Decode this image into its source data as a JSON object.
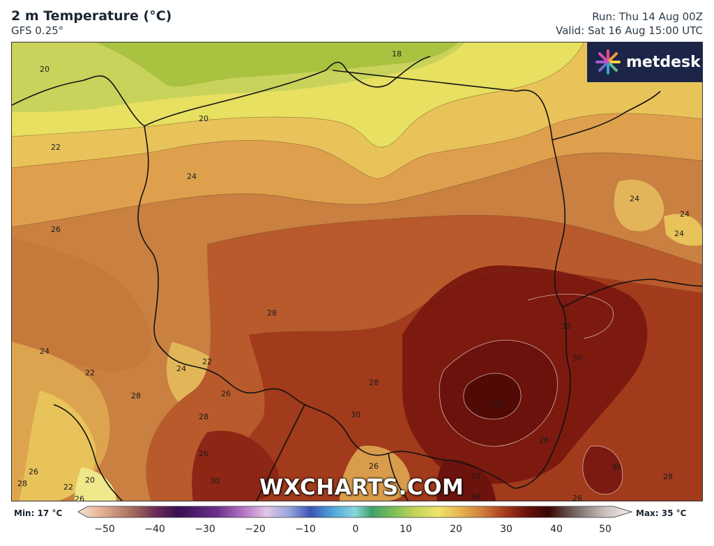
{
  "header": {
    "title": "2 m Temperature (°C)",
    "subtitle": "GFS 0.25°",
    "run": "Run: Thu 14 Aug 00Z",
    "valid": "Valid: Sat 16 Aug 15:00 UTC"
  },
  "logo": {
    "text": "metdesk"
  },
  "watermark": "WXCHARTS.COM",
  "legend": {
    "min_label": "Min: 17 °C",
    "max_label": "Max: 35 °C",
    "ticks": [
      "−50",
      "−40",
      "−30",
      "−20",
      "−10",
      "0",
      "10",
      "20",
      "30",
      "40",
      "50"
    ]
  },
  "contour_labels": [
    "20",
    "18",
    "20",
    "22",
    "24",
    "24",
    "24",
    "24",
    "26",
    "24",
    "22",
    "24",
    "22",
    "26",
    "28",
    "28",
    "28",
    "28",
    "30",
    "26",
    "30",
    "32",
    "30",
    "32",
    "28",
    "30",
    "26",
    "26",
    "20",
    "22",
    "28",
    "26",
    "32",
    "34",
    "26",
    "28"
  ],
  "colors": {
    "t18": "#a9c240",
    "t20": "#e7e060",
    "t22": "#e8c35a",
    "t24": "#dfa04e",
    "t26": "#cf843f",
    "t28": "#bc5a2c",
    "t30": "#9c2c19",
    "t32": "#751510",
    "t34": "#5a0d08",
    "brand": "#1c2547"
  }
}
